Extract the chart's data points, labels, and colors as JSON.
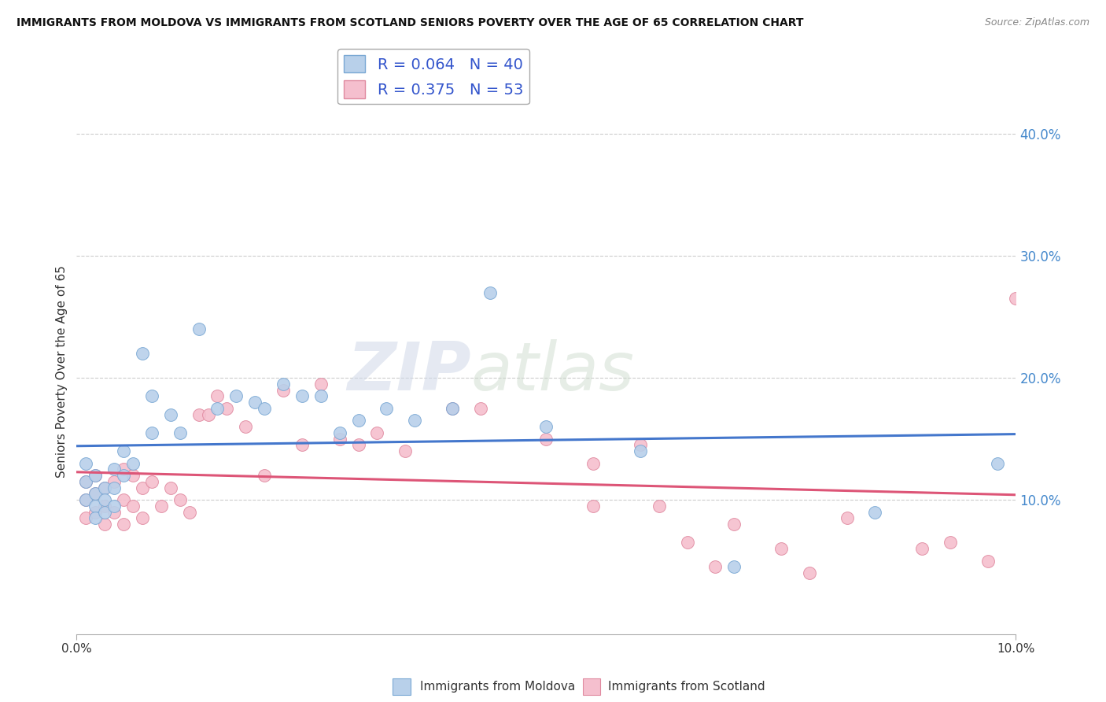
{
  "title": "IMMIGRANTS FROM MOLDOVA VS IMMIGRANTS FROM SCOTLAND SENIORS POVERTY OVER THE AGE OF 65 CORRELATION CHART",
  "source": "Source: ZipAtlas.com",
  "ylabel": "Seniors Poverty Over the Age of 65",
  "xlim": [
    0.0,
    0.1
  ],
  "ylim": [
    -0.01,
    0.42
  ],
  "yticks": [
    0.1,
    0.2,
    0.3,
    0.4
  ],
  "ytick_labels": [
    "10.0%",
    "20.0%",
    "30.0%",
    "40.0%"
  ],
  "legend1_r": "0.064",
  "legend1_n": "40",
  "legend2_r": "0.375",
  "legend2_n": "53",
  "moldova_color": "#b8d0ea",
  "scotland_color": "#f5bfce",
  "moldova_edge": "#7aa8d4",
  "scotland_edge": "#e08aA0",
  "trendline_moldova": "#4477cc",
  "trendline_scotland": "#dd5577",
  "watermark_zip": "ZIP",
  "watermark_atlas": "atlas",
  "moldova_x": [
    0.001,
    0.001,
    0.001,
    0.002,
    0.002,
    0.002,
    0.002,
    0.003,
    0.003,
    0.003,
    0.004,
    0.004,
    0.004,
    0.005,
    0.005,
    0.006,
    0.007,
    0.008,
    0.008,
    0.01,
    0.011,
    0.013,
    0.015,
    0.017,
    0.019,
    0.02,
    0.022,
    0.024,
    0.026,
    0.028,
    0.03,
    0.033,
    0.036,
    0.04,
    0.044,
    0.05,
    0.06,
    0.07,
    0.085,
    0.098
  ],
  "moldova_y": [
    0.13,
    0.115,
    0.1,
    0.12,
    0.105,
    0.095,
    0.085,
    0.11,
    0.1,
    0.09,
    0.125,
    0.11,
    0.095,
    0.14,
    0.12,
    0.13,
    0.22,
    0.155,
    0.185,
    0.17,
    0.155,
    0.24,
    0.175,
    0.185,
    0.18,
    0.175,
    0.195,
    0.185,
    0.185,
    0.155,
    0.165,
    0.175,
    0.165,
    0.175,
    0.27,
    0.16,
    0.14,
    0.045,
    0.09,
    0.13
  ],
  "scotland_x": [
    0.001,
    0.001,
    0.001,
    0.002,
    0.002,
    0.002,
    0.003,
    0.003,
    0.003,
    0.004,
    0.004,
    0.005,
    0.005,
    0.005,
    0.006,
    0.006,
    0.007,
    0.007,
    0.008,
    0.009,
    0.01,
    0.011,
    0.012,
    0.013,
    0.014,
    0.015,
    0.016,
    0.018,
    0.02,
    0.022,
    0.024,
    0.026,
    0.028,
    0.03,
    0.032,
    0.035,
    0.04,
    0.043,
    0.05,
    0.055,
    0.055,
    0.06,
    0.062,
    0.065,
    0.068,
    0.07,
    0.075,
    0.078,
    0.082,
    0.09,
    0.093,
    0.097,
    0.1
  ],
  "scotland_y": [
    0.115,
    0.1,
    0.085,
    0.12,
    0.105,
    0.09,
    0.11,
    0.095,
    0.08,
    0.115,
    0.09,
    0.125,
    0.1,
    0.08,
    0.12,
    0.095,
    0.11,
    0.085,
    0.115,
    0.095,
    0.11,
    0.1,
    0.09,
    0.17,
    0.17,
    0.185,
    0.175,
    0.16,
    0.12,
    0.19,
    0.145,
    0.195,
    0.15,
    0.145,
    0.155,
    0.14,
    0.175,
    0.175,
    0.15,
    0.13,
    0.095,
    0.145,
    0.095,
    0.065,
    0.045,
    0.08,
    0.06,
    0.04,
    0.085,
    0.06,
    0.065,
    0.05,
    0.265
  ]
}
